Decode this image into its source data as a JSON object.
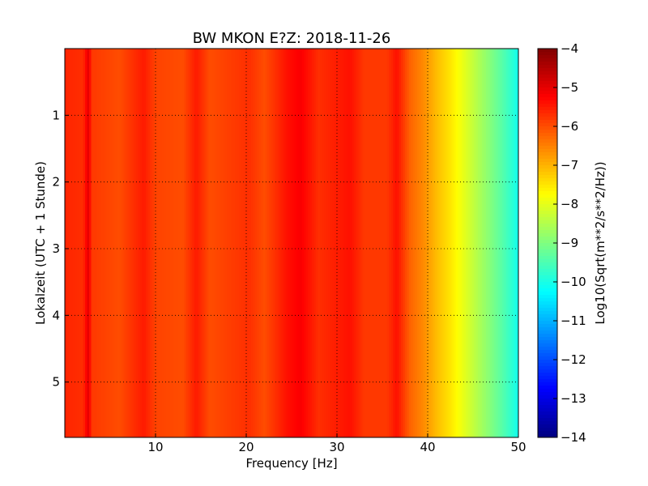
{
  "chart_data": {
    "type": "heatmap",
    "title": "BW MKON E?Z: 2018-11-26",
    "xlabel": "Frequency [Hz]",
    "ylabel": "Lokalzeit (UTC + 1 Stunde)",
    "colorbar_label": "Log10(Sqrt(m**2/s**2/Hz))",
    "xlim": [
      0,
      50
    ],
    "ylim": [
      5.83,
      0
    ],
    "xticks": [
      10,
      20,
      30,
      40,
      50
    ],
    "yticks": [
      1,
      2,
      3,
      4,
      5
    ],
    "clim": [
      -14,
      -4
    ],
    "cticks": [
      -4,
      -5,
      -6,
      -7,
      -8,
      -9,
      -10,
      -11,
      -12,
      -13,
      -14
    ],
    "colormap": "jet",
    "grid": true,
    "freq_profile_hz": [
      0,
      2,
      2.6,
      3,
      6,
      8.7,
      10,
      13,
      14.5,
      16,
      20.3,
      22,
      24.5,
      26,
      28,
      31.5,
      33,
      35.5,
      36.6,
      38,
      39.5,
      41,
      42.5,
      44,
      45.5,
      47,
      48.5,
      50
    ],
    "freq_profile_value": [
      -5.6,
      -5.7,
      -5.0,
      -5.8,
      -6.0,
      -5.5,
      -5.9,
      -6.0,
      -5.5,
      -6.0,
      -5.7,
      -6.0,
      -5.4,
      -5.2,
      -5.7,
      -5.4,
      -5.8,
      -5.8,
      -5.4,
      -6.2,
      -6.6,
      -7.1,
      -7.5,
      -8.0,
      -8.5,
      -9.0,
      -9.5,
      -10.1
    ]
  }
}
